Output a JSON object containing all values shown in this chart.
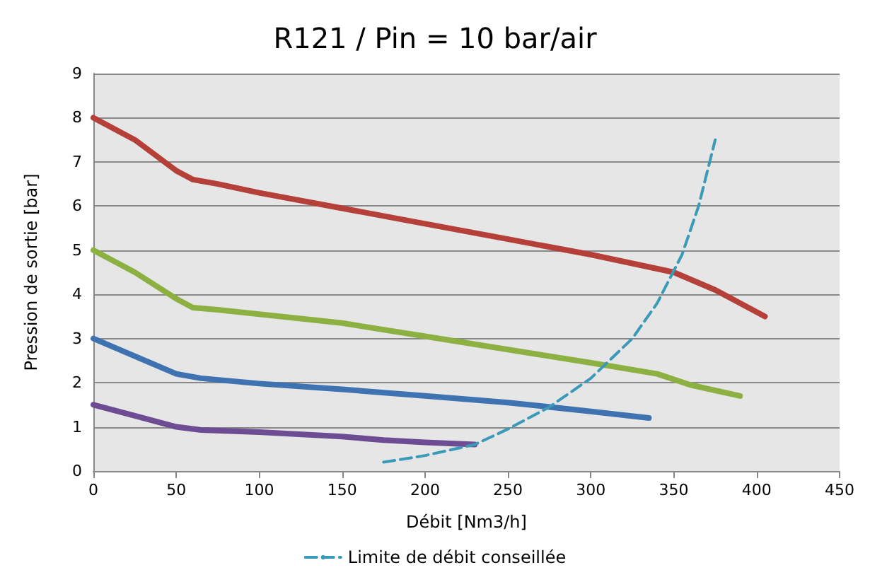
{
  "chart_data": {
    "type": "line",
    "title": "R121 / Pin = 10 bar/air",
    "xlabel": "Débit [Nm3/h]",
    "ylabel": "Pression de sortie [bar]",
    "xlim": [
      0,
      450
    ],
    "xticks": [
      0,
      50,
      100,
      150,
      200,
      250,
      300,
      350,
      400,
      450
    ],
    "ylim": [
      0,
      9
    ],
    "yticks": [
      0,
      1,
      2,
      3,
      4,
      5,
      6,
      7,
      8,
      9
    ],
    "grid": "y",
    "legend": "bottom",
    "marker": "none",
    "series": [
      {
        "color": "#b5403a",
        "x": [
          0,
          25,
          50,
          60,
          75,
          100,
          150,
          200,
          250,
          300,
          350,
          375,
          405
        ],
        "values": [
          8.0,
          7.5,
          6.8,
          6.6,
          6.5,
          6.3,
          5.95,
          5.6,
          5.25,
          4.9,
          4.5,
          4.1,
          3.5
        ]
      },
      {
        "color": "#8db043",
        "x": [
          0,
          25,
          50,
          60,
          75,
          100,
          150,
          200,
          250,
          300,
          340,
          360,
          390
        ],
        "values": [
          5.0,
          4.5,
          3.9,
          3.7,
          3.65,
          3.55,
          3.35,
          3.05,
          2.75,
          2.45,
          2.2,
          1.95,
          1.7
        ]
      },
      {
        "color": "#3f72b0",
        "x": [
          0,
          25,
          50,
          65,
          100,
          150,
          200,
          250,
          300,
          335
        ],
        "values": [
          3.0,
          2.6,
          2.2,
          2.1,
          1.98,
          1.85,
          1.7,
          1.55,
          1.35,
          1.2
        ]
      },
      {
        "color": "#6e4c94",
        "x": [
          0,
          25,
          50,
          65,
          100,
          150,
          175,
          200,
          230
        ],
        "values": [
          1.5,
          1.25,
          1.0,
          0.93,
          0.88,
          0.78,
          0.7,
          0.65,
          0.6
        ]
      },
      {
        "name": "Limite de débit conseillée",
        "color": "#3a9ab8",
        "line_style": "dashed",
        "x": [
          175,
          200,
          230,
          250,
          275,
          300,
          325,
          340,
          355,
          365,
          375
        ],
        "values": [
          0.2,
          0.35,
          0.6,
          0.95,
          1.45,
          2.1,
          3.0,
          3.8,
          4.9,
          6.0,
          7.5
        ]
      }
    ]
  }
}
